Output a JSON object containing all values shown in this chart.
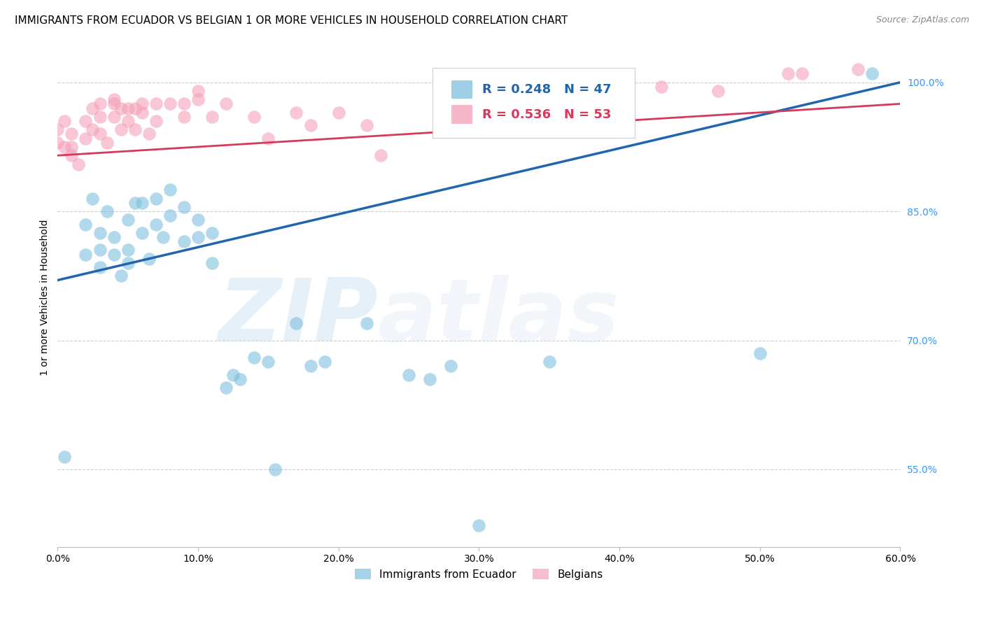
{
  "title": "IMMIGRANTS FROM ECUADOR VS BELGIAN 1 OR MORE VEHICLES IN HOUSEHOLD CORRELATION CHART",
  "source": "Source: ZipAtlas.com",
  "ylabel": "1 or more Vehicles in Household",
  "ylim": [
    46,
    104
  ],
  "xlim": [
    0.0,
    0.6
  ],
  "ytick_labels": [
    "55.0%",
    "70.0%",
    "85.0%",
    "100.0%"
  ],
  "ytick_values": [
    55.0,
    70.0,
    85.0,
    100.0
  ],
  "xtick_values": [
    0.0,
    0.1,
    0.2,
    0.3,
    0.4,
    0.5,
    0.6
  ],
  "xtick_labels": [
    "0.0%",
    "10.0%",
    "20.0%",
    "30.0%",
    "40.0%",
    "50.0%",
    "60.0%"
  ],
  "blue_color": "#7fbfdf",
  "pink_color": "#f4a0b8",
  "blue_line_color": "#2166ac",
  "pink_line_color": "#d6395b",
  "watermark_zip": "ZIP",
  "watermark_atlas": "atlas",
  "blue_scatter_x": [
    0.005,
    0.02,
    0.02,
    0.025,
    0.03,
    0.03,
    0.03,
    0.035,
    0.04,
    0.04,
    0.045,
    0.05,
    0.05,
    0.05,
    0.055,
    0.06,
    0.06,
    0.065,
    0.07,
    0.07,
    0.075,
    0.08,
    0.08,
    0.09,
    0.09,
    0.1,
    0.1,
    0.11,
    0.11,
    0.12,
    0.125,
    0.13,
    0.14,
    0.15,
    0.155,
    0.17,
    0.18,
    0.19,
    0.22,
    0.25,
    0.265,
    0.28,
    0.3,
    0.35,
    0.5,
    0.58
  ],
  "blue_scatter_y": [
    56.5,
    80.0,
    83.5,
    86.5,
    78.5,
    80.5,
    82.5,
    85.0,
    80.0,
    82.0,
    77.5,
    80.5,
    84.0,
    79.0,
    86.0,
    82.5,
    86.0,
    79.5,
    83.5,
    86.5,
    82.0,
    84.5,
    87.5,
    81.5,
    85.5,
    82.0,
    84.0,
    79.0,
    82.5,
    64.5,
    66.0,
    65.5,
    68.0,
    67.5,
    55.0,
    72.0,
    67.0,
    67.5,
    72.0,
    66.0,
    65.5,
    67.0,
    48.5,
    67.5,
    68.5,
    101.0
  ],
  "pink_scatter_x": [
    0.0,
    0.0,
    0.005,
    0.005,
    0.01,
    0.01,
    0.01,
    0.015,
    0.02,
    0.02,
    0.025,
    0.025,
    0.03,
    0.03,
    0.03,
    0.035,
    0.04,
    0.04,
    0.04,
    0.045,
    0.045,
    0.05,
    0.05,
    0.055,
    0.055,
    0.06,
    0.06,
    0.065,
    0.07,
    0.07,
    0.08,
    0.09,
    0.09,
    0.1,
    0.1,
    0.11,
    0.12,
    0.14,
    0.15,
    0.17,
    0.18,
    0.2,
    0.22,
    0.23,
    0.3,
    0.32,
    0.43,
    0.47,
    0.52,
    0.53,
    0.57
  ],
  "pink_scatter_y": [
    94.5,
    93.0,
    95.5,
    92.5,
    94.0,
    92.5,
    91.5,
    90.5,
    95.5,
    93.5,
    97.0,
    94.5,
    97.5,
    96.0,
    94.0,
    93.0,
    98.0,
    97.5,
    96.0,
    97.0,
    94.5,
    97.0,
    95.5,
    97.0,
    94.5,
    97.5,
    96.5,
    94.0,
    97.5,
    95.5,
    97.5,
    97.5,
    96.0,
    99.0,
    98.0,
    96.0,
    97.5,
    96.0,
    93.5,
    96.5,
    95.0,
    96.5,
    95.0,
    91.5,
    99.0,
    98.0,
    99.5,
    99.0,
    101.0,
    101.0,
    101.5
  ],
  "blue_line_x": [
    0.0,
    0.6
  ],
  "blue_line_y": [
    77.0,
    100.0
  ],
  "pink_line_x": [
    0.0,
    0.6
  ],
  "pink_line_y": [
    91.5,
    97.5
  ],
  "title_fontsize": 11,
  "axis_label_fontsize": 10,
  "tick_fontsize": 10,
  "legend_fontsize": 13,
  "background_color": "#ffffff"
}
